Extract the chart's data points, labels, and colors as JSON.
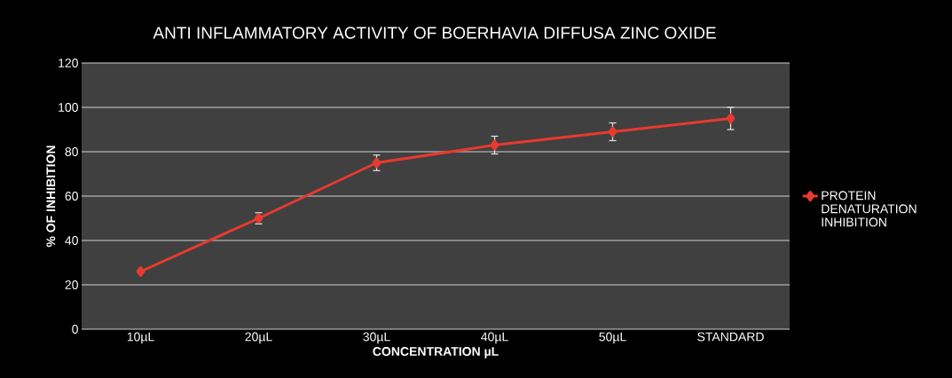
{
  "chart_data": {
    "type": "line",
    "title": "ANTI INFLAMMATORY ACTIVITY OF BOERHAVIA DIFFUSA ZINC OXIDE",
    "xlabel": "CONCENTRATION µL",
    "ylabel": "% OF INHIBITION",
    "categories": [
      "10µL",
      "20µL",
      "30µL",
      "40µL",
      "50µL",
      "STANDARD"
    ],
    "series": [
      {
        "name": "PROTEIN DENATURATION INHIBITION",
        "color": "#e83a2f",
        "values": [
          26,
          50,
          75,
          83,
          89,
          95
        ],
        "errors": [
          null,
          2.5,
          3.5,
          4,
          4,
          5
        ]
      }
    ],
    "ylim": [
      0,
      120
    ],
    "yticks": [
      0,
      20,
      40,
      60,
      80,
      100,
      120
    ],
    "grid": "y",
    "legend": "right",
    "marker": "diamond",
    "line_style": "solid"
  }
}
